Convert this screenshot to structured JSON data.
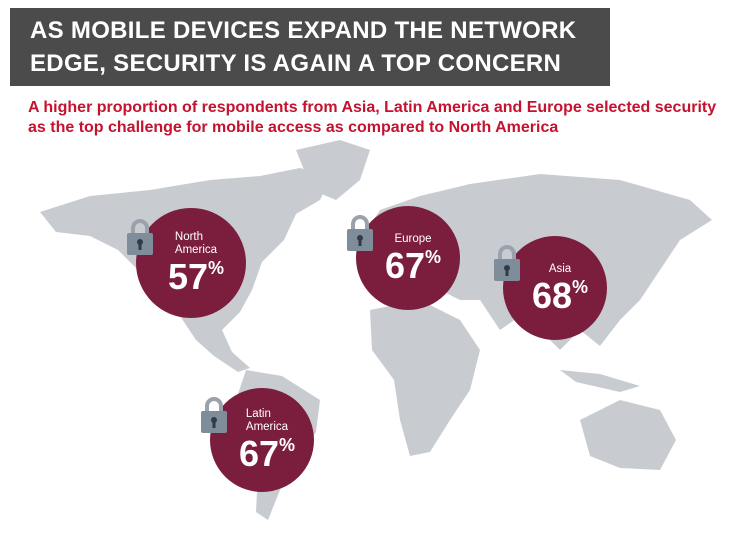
{
  "title": {
    "line1": "AS MOBILE DEVICES EXPAND THE NETWORK",
    "line2": "EDGE, SECURITY IS AGAIN A TOP CONCERN"
  },
  "subtitle": "A higher proportion of respondents from Asia, Latin America and Europe selected security as the top challenge for mobile access as compared to North America",
  "colors": {
    "bubble": "#7b1e3e",
    "map": "#c8ccd1",
    "title_bg": "#4b4b4b",
    "subtitle": "#c4122f"
  },
  "regions": [
    {
      "name1": "North",
      "name2": "America",
      "value": "57",
      "unit": "%"
    },
    {
      "name1": "Europe",
      "name2": "",
      "value": "67",
      "unit": "%"
    },
    {
      "name1": "Asia",
      "name2": "",
      "value": "68",
      "unit": "%"
    },
    {
      "name1": "Latin",
      "name2": "America",
      "value": "67",
      "unit": "%"
    }
  ]
}
